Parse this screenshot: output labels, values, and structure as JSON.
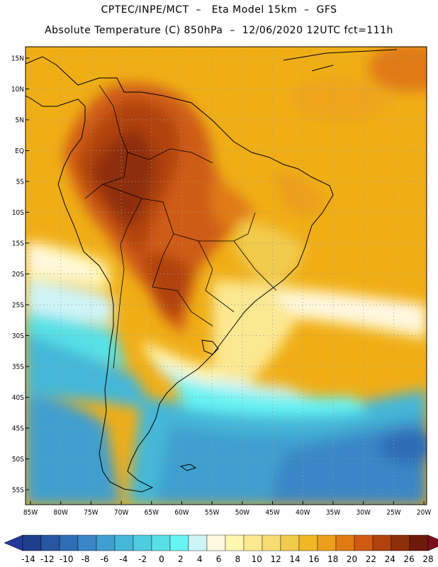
{
  "header": {
    "line1": "CPTEC/INPE/MCT  –   Eta Model 15km  –  GFS",
    "line2": "Absolute Temperature (C) 850hPa  –  12/06/2020 12UTC fct=111h"
  },
  "axes": {
    "lat_labels": [
      "15N",
      "10N",
      "5N",
      "EQ",
      "5S",
      "10S",
      "15S",
      "20S",
      "25S",
      "30S",
      "35S",
      "40S",
      "45S",
      "50S",
      "55S"
    ],
    "lon_labels": [
      "85W",
      "80W",
      "75W",
      "70W",
      "65W",
      "60W",
      "55W",
      "50W",
      "45W",
      "40W",
      "35W",
      "30W",
      "25W",
      "20W"
    ]
  },
  "colorbar": {
    "labels": [
      "-14",
      "-12",
      "-10",
      "-8",
      "-6",
      "-4",
      "-2",
      "0",
      "2",
      "4",
      "6",
      "8",
      "10",
      "12",
      "14",
      "16",
      "18",
      "20",
      "22",
      "24",
      "26",
      "28"
    ],
    "colors": [
      "#1f3e8c",
      "#2756a2",
      "#2f6db6",
      "#3a86c6",
      "#3f9fcf",
      "#45b7d8",
      "#4fccdf",
      "#58e0e6",
      "#68f3f3",
      "#cff4f7",
      "#fff8e1",
      "#fff6b0",
      "#fbe891",
      "#f6dc72",
      "#f2cb4e",
      "#f0b726",
      "#ec9f1d",
      "#e07a12",
      "#cf5b12",
      "#b0420d",
      "#8e2e0a",
      "#6e1a0a"
    ],
    "under_color": "#24399a",
    "over_color": "#7a0d1e"
  },
  "map": {
    "ocean_warm": "#f0ae16",
    "ocean_cold": "#3a88c6"
  }
}
